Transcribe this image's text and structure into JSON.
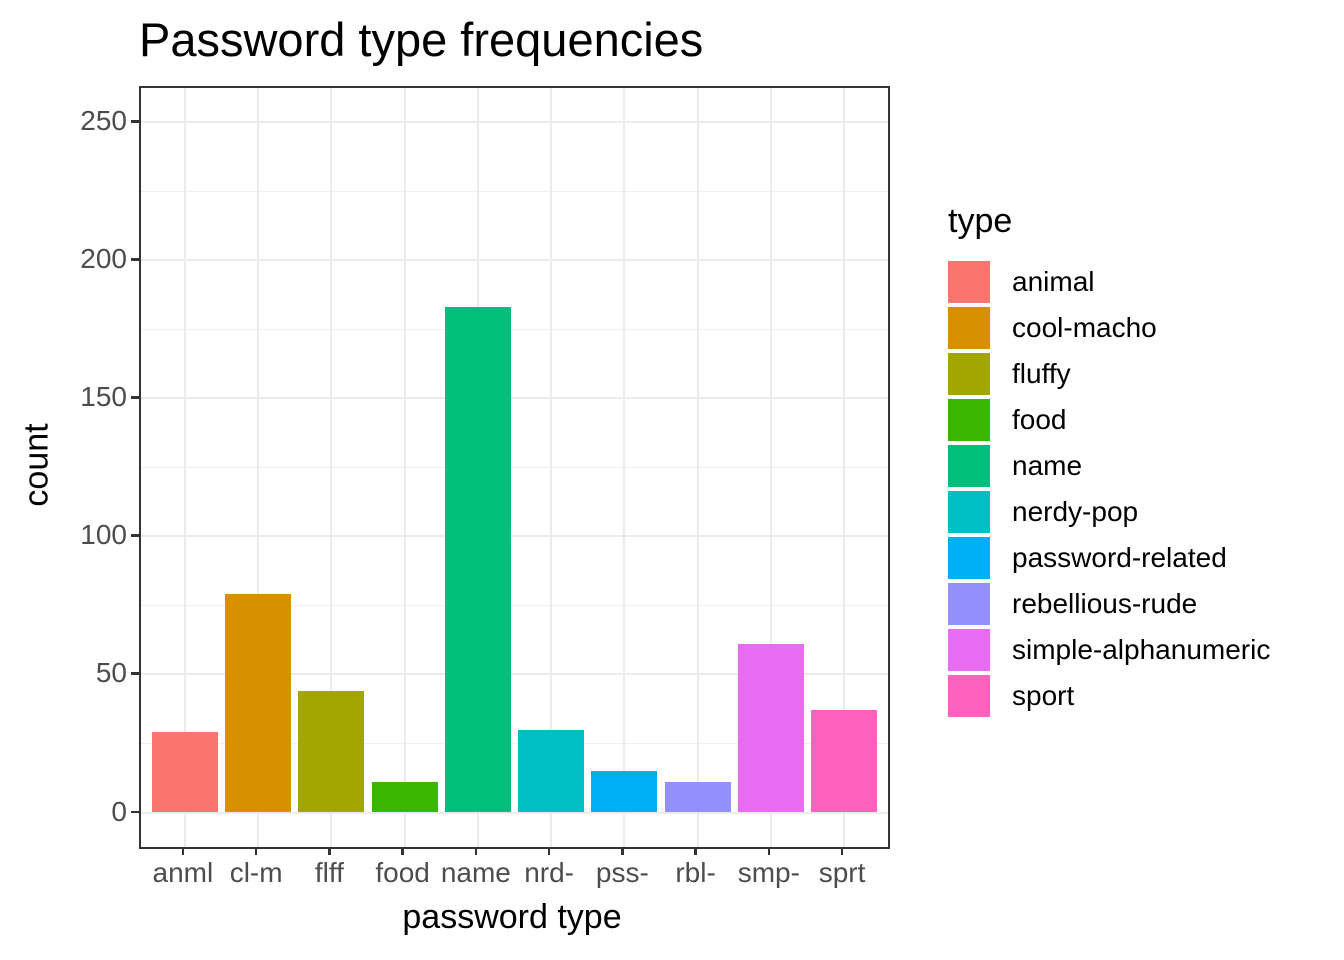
{
  "chart_data": {
    "type": "bar",
    "title": "Password type frequencies",
    "xlabel": "password type",
    "ylabel": "count",
    "categories": [
      "anml",
      "cl-m",
      "flff",
      "food",
      "name",
      "nrd-",
      "pss-",
      "rbl-",
      "smp-",
      "sprt"
    ],
    "values": [
      29,
      79,
      44,
      11,
      183,
      30,
      15,
      11,
      61,
      37
    ],
    "yticks": [
      0,
      50,
      100,
      150,
      200,
      250
    ],
    "yminor": [
      25,
      75,
      125,
      175,
      225
    ],
    "ylim": [
      0,
      262
    ],
    "grid": true,
    "panel_background": "#FFFFFF",
    "gridline_color": "#EBEBEB",
    "panel_border_color": "#333333",
    "axis_text_color": "#4D4D4D",
    "legend_position": "right",
    "legend": {
      "title": "type",
      "entries": [
        {
          "label": "animal",
          "color": "#F8766D"
        },
        {
          "label": "cool-macho",
          "color": "#D89000"
        },
        {
          "label": "fluffy",
          "color": "#A3A500"
        },
        {
          "label": "food",
          "color": "#39B600"
        },
        {
          "label": "name",
          "color": "#00BF7D"
        },
        {
          "label": "nerdy-pop",
          "color": "#00BFC4"
        },
        {
          "label": "password-related",
          "color": "#00B0F6"
        },
        {
          "label": "rebellious-rude",
          "color": "#9590FF"
        },
        {
          "label": "simple-alphanumeric",
          "color": "#E76BF3"
        },
        {
          "label": "sport",
          "color": "#FF62BC"
        }
      ]
    }
  }
}
